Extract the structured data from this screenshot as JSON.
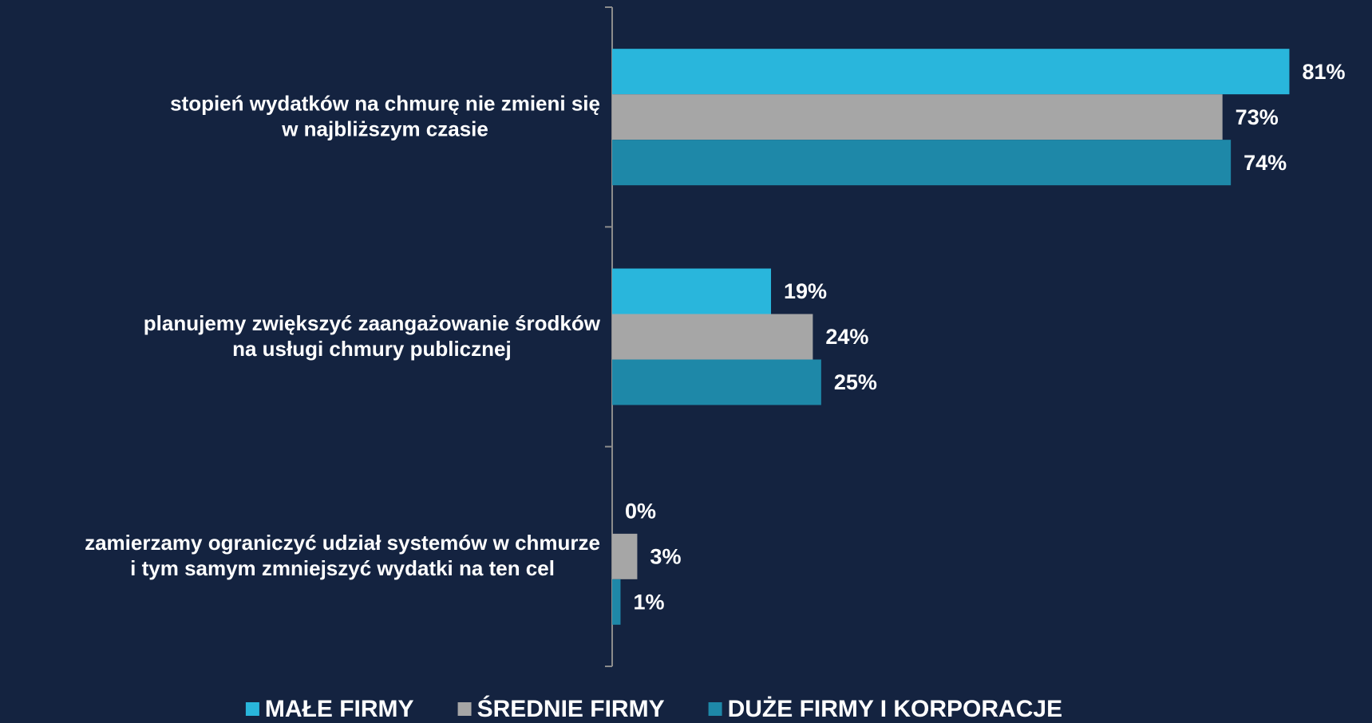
{
  "chart_data": {
    "type": "bar",
    "orientation": "horizontal",
    "categories": [
      [
        "stopień wydatków na chmurę nie zmieni się",
        "w najbliższym czasie"
      ],
      [
        "planujemy zwiększyć zaangażowanie środków",
        "na usługi chmury publicznej"
      ],
      [
        "zamierzamy ograniczyć udział systemów w chmurze",
        "i tym samym zmniejszyć wydatki na ten cel"
      ]
    ],
    "series": [
      {
        "name": "MAŁE FIRMY",
        "color": "#29b6dc",
        "values": [
          81,
          19,
          0
        ],
        "value_labels": [
          "81%",
          "19%",
          "0%"
        ]
      },
      {
        "name": "ŚREDNIE FIRMY",
        "color": "#a6a6a6",
        "values": [
          73,
          24,
          3
        ],
        "value_labels": [
          "73%",
          "24%",
          "3%"
        ]
      },
      {
        "name": "DUŻE FIRMY I KORPORACJE",
        "color": "#1e88a8",
        "values": [
          74,
          25,
          1
        ],
        "value_labels": [
          "74%",
          "25%",
          "1%"
        ]
      }
    ],
    "legend": "bottom"
  }
}
